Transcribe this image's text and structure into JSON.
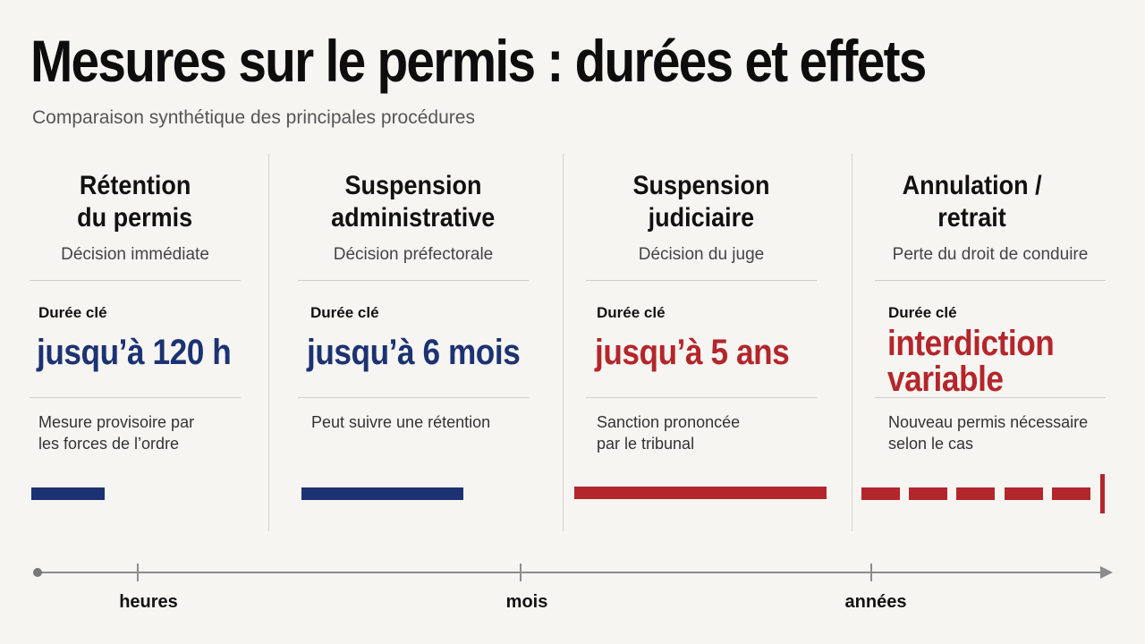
{
  "title": "Mesures sur le permis : durées et effets",
  "subtitle": "Comparaison synthétique des principales procédures",
  "columns": [
    {
      "title_line1": "Rétention",
      "title_line2": "du permis",
      "subtitle": "Décision immédiate",
      "key_label": "Durée clé",
      "key_value_line1": "jusqu’à 120 h",
      "key_value_line2": "",
      "description_line1": "Mesure provisoire par",
      "description_line2": "les forces de l’ordre",
      "color": "#1c3272",
      "bar_style": "solid"
    },
    {
      "title_line1": "Suspension",
      "title_line2": "administrative",
      "subtitle": "Décision préfectorale",
      "key_label": "Durée clé",
      "key_value_line1": "jusqu’à 6 mois",
      "key_value_line2": "",
      "description_line1": "Peut suivre une rétention",
      "description_line2": "",
      "color": "#1c3272",
      "bar_style": "solid"
    },
    {
      "title_line1": "Suspension",
      "title_line2": "judiciaire",
      "subtitle": "Décision du juge",
      "key_label": "Durée clé",
      "key_value_line1": "jusqu’à 5 ans",
      "key_value_line2": "",
      "description_line1": "Sanction prononcée",
      "description_line2": "par le tribunal",
      "color": "#b3262b",
      "bar_style": "solid"
    },
    {
      "title_line1": "Annulation /",
      "title_line2": "retrait",
      "subtitle": "Perte du droit de conduire",
      "key_label": "Durée clé",
      "key_value_line1": "interdiction",
      "key_value_line2": "variable",
      "description_line1": "Nouveau permis nécessaire",
      "description_line2": "selon le cas",
      "color": "#b3262b",
      "bar_style": "dashed"
    }
  ],
  "timeline": {
    "labels": [
      "heures",
      "mois",
      "années"
    ]
  }
}
